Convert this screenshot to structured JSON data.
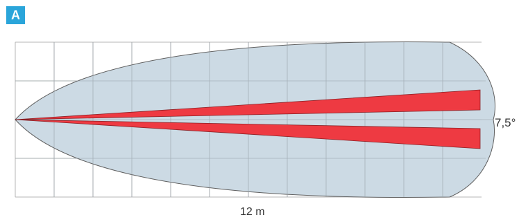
{
  "panel": {
    "badge_label": "A",
    "angle_label": "7,5°",
    "distance_label": "12 m"
  },
  "colors": {
    "badge": "#2aa5da",
    "coverage_fill": "#c6d6e1",
    "beam_fill": "#ee3a42",
    "grid_line": "#b4b4b4",
    "outline": "#5f5f5f"
  }
}
